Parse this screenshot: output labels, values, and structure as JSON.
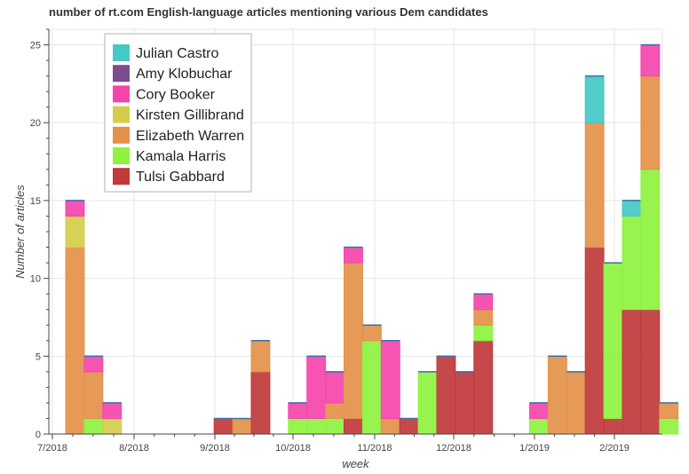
{
  "chart_data": {
    "type": "stacked-bar",
    "title": "number of rt.com English-language articles mentioning various Dem candidates",
    "xlabel": "week",
    "ylabel": "Number of articles",
    "ylim": [
      0,
      26
    ],
    "yticks": [
      0,
      5,
      10,
      15,
      20,
      25
    ],
    "xticks": [
      "7/2018",
      "8/2018",
      "9/2018",
      "10/2018",
      "11/2018",
      "12/2018",
      "1/2019",
      "2/2019"
    ],
    "legend": [
      "Julian Castro",
      "Amy Klobuchar",
      "Cory Booker",
      "Kirsten Gillibrand",
      "Elizabeth Warren",
      "Kamala Harris",
      "Tulsi Gabbard"
    ],
    "legend_position": "top-left",
    "series": [
      {
        "name": "Tulsi Gabbard",
        "color": "#c0393b",
        "values": [
          0,
          0,
          0,
          0,
          0,
          0,
          0,
          0,
          1,
          0,
          4,
          0,
          0,
          0,
          0,
          1,
          0,
          0,
          1,
          0,
          5,
          4,
          6,
          0,
          0,
          0,
          0,
          0,
          12,
          1,
          8,
          8,
          0
        ]
      },
      {
        "name": "Kamala Harris",
        "color": "#8ef23f",
        "values": [
          0,
          1,
          0,
          0,
          0,
          0,
          0,
          0,
          0,
          0,
          0,
          0,
          1,
          1,
          1,
          0,
          6,
          0,
          0,
          4,
          0,
          0,
          1,
          0,
          0,
          1,
          0,
          0,
          0,
          10,
          6,
          9,
          1
        ]
      },
      {
        "name": "Elizabeth Warren",
        "color": "#e3914a",
        "values": [
          12,
          3,
          0,
          0,
          0,
          0,
          0,
          0,
          0,
          1,
          2,
          0,
          0,
          0,
          1,
          10,
          1,
          1,
          0,
          0,
          0,
          0,
          1,
          0,
          0,
          0,
          5,
          4,
          8,
          0,
          0,
          6,
          1
        ]
      },
      {
        "name": "Kirsten Gillibrand",
        "color": "#d4cd4a",
        "values": [
          2,
          0,
          1,
          0,
          0,
          0,
          0,
          0,
          0,
          0,
          0,
          0,
          0,
          0,
          0,
          0,
          0,
          0,
          0,
          0,
          0,
          0,
          0,
          0,
          0,
          0,
          0,
          0,
          0,
          0,
          0,
          0,
          0
        ]
      },
      {
        "name": "Cory Booker",
        "color": "#f545ad",
        "values": [
          1,
          1,
          1,
          0,
          0,
          0,
          0,
          0,
          0,
          0,
          0,
          0,
          1,
          4,
          2,
          1,
          0,
          5,
          0,
          0,
          0,
          0,
          1,
          0,
          0,
          1,
          0,
          0,
          0,
          0,
          0,
          2,
          0
        ]
      },
      {
        "name": "Amy Klobuchar",
        "color": "#7e4b90",
        "values": [
          0,
          0,
          0,
          0,
          0,
          0,
          0,
          0,
          0,
          0,
          0,
          0,
          0,
          0,
          0,
          0,
          0,
          0,
          0,
          0,
          0,
          0,
          0,
          0,
          0,
          0,
          0,
          0,
          0,
          0,
          0,
          0,
          0
        ]
      },
      {
        "name": "Julian Castro",
        "color": "#45c9c5",
        "values": [
          0,
          0,
          0,
          0,
          0,
          0,
          0,
          0,
          0,
          0,
          0,
          0,
          0,
          0,
          0,
          0,
          0,
          0,
          0,
          0,
          0,
          0,
          0,
          0,
          0,
          0,
          0,
          0,
          3,
          0,
          1,
          0,
          0
        ]
      }
    ]
  }
}
